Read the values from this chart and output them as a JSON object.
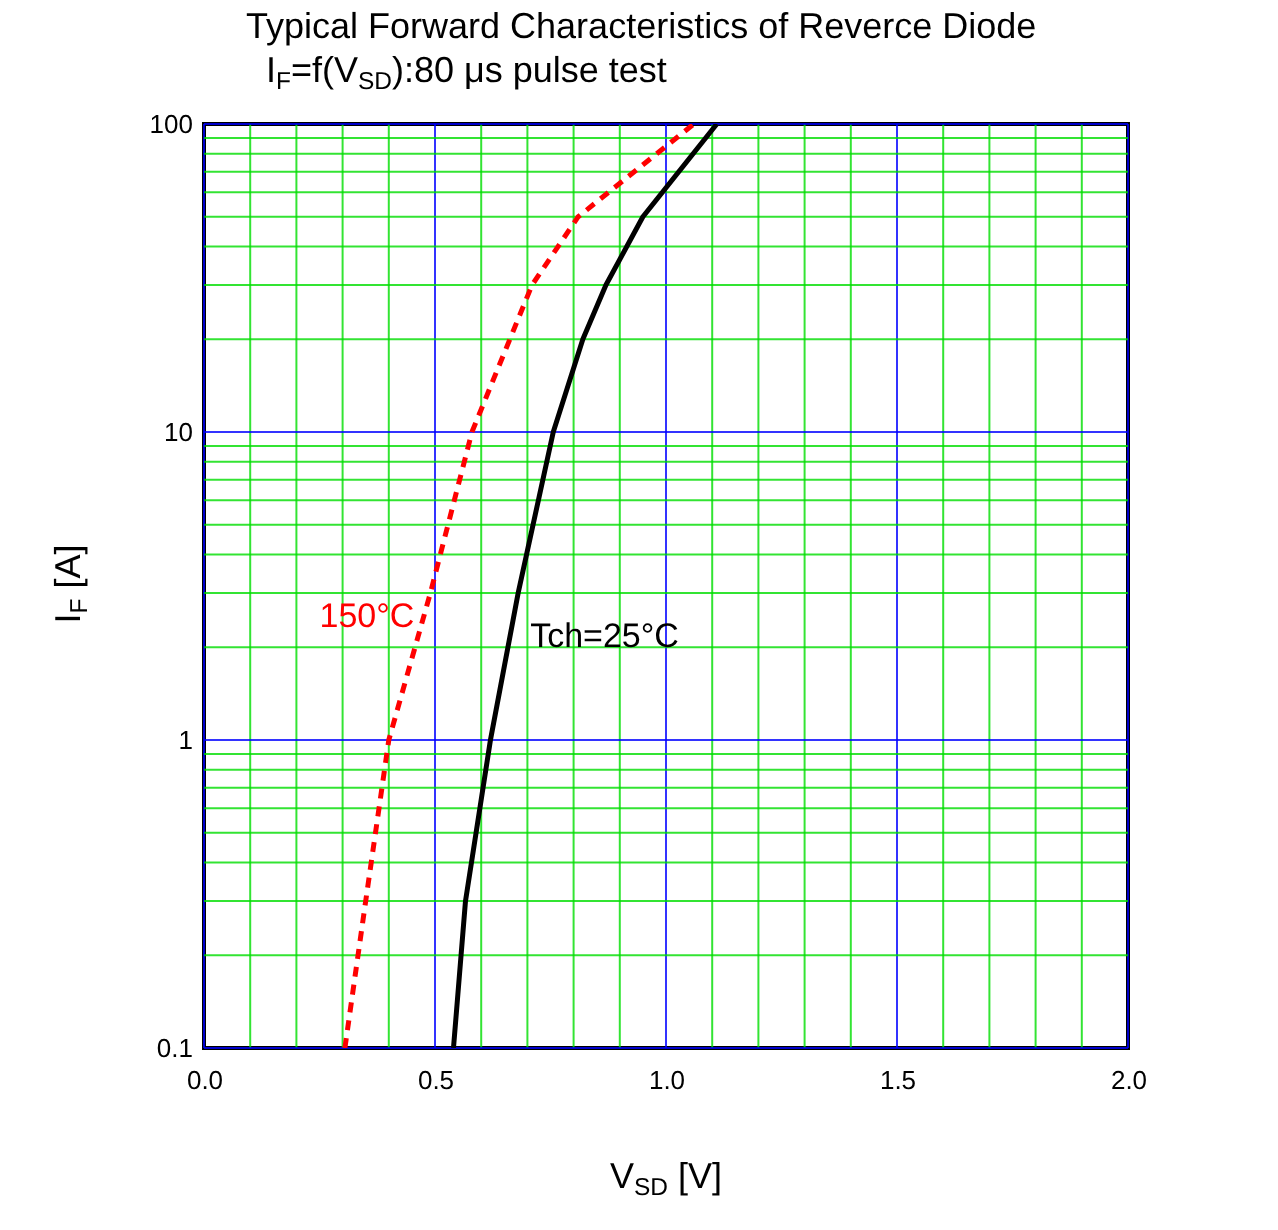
{
  "chart_data": {
    "type": "line",
    "title": "Typical Forward Characteristics of Reverce Diode",
    "subtitle": "I$_{F}$=f(V$_{SD}$):80 μs pulse test",
    "xlabel": "V$_{SD}$ [V]",
    "ylabel": "I$_{F}$ [A]",
    "xlim": [
      0,
      2
    ],
    "xticks": [
      {
        "value": 0,
        "label": "0.0"
      },
      {
        "value": 0.1,
        "label": null
      },
      {
        "value": 0.2,
        "label": null
      },
      {
        "value": 0.3,
        "label": null
      },
      {
        "value": 0.4,
        "label": null
      },
      {
        "value": 0.5,
        "label": "0.5"
      },
      {
        "value": 0.6,
        "label": null
      },
      {
        "value": 0.7,
        "label": null
      },
      {
        "value": 0.8,
        "label": null
      },
      {
        "value": 0.9,
        "label": null
      },
      {
        "value": 1,
        "label": "1.0"
      },
      {
        "value": 1.1,
        "label": null
      },
      {
        "value": 1.2,
        "label": null
      },
      {
        "value": 1.3,
        "label": null
      },
      {
        "value": 1.4,
        "label": null
      },
      {
        "value": 1.5,
        "label": "1.5"
      },
      {
        "value": 1.6,
        "label": null
      },
      {
        "value": 1.7,
        "label": null
      },
      {
        "value": 1.8,
        "label": null
      },
      {
        "value": 1.9,
        "label": null
      },
      {
        "value": 2,
        "label": "2.0"
      }
    ],
    "ylim": [
      0.1,
      100
    ],
    "yticks": [
      0.1,
      {
        "value": 0.2,
        "label": null
      },
      {
        "value": 0.3,
        "label": null
      },
      {
        "value": 0.4,
        "label": null
      },
      {
        "value": 0.5,
        "label": null
      },
      {
        "value": 0.6,
        "label": null
      },
      {
        "value": 0.7,
        "label": null
      },
      {
        "value": 0.8,
        "label": null
      },
      {
        "value": 0.9,
        "label": null
      },
      1,
      {
        "value": 2,
        "label": null
      },
      {
        "value": 3,
        "label": null
      },
      {
        "value": 4,
        "label": null
      },
      {
        "value": 5,
        "label": null
      },
      {
        "value": 6,
        "label": null
      },
      {
        "value": 7,
        "label": null
      },
      {
        "value": 8,
        "label": null
      },
      {
        "value": 9,
        "label": null
      },
      10,
      {
        "value": 20,
        "label": null
      },
      {
        "value": 30,
        "label": null
      },
      {
        "value": 40,
        "label": null
      },
      {
        "value": 50,
        "label": null
      },
      {
        "value": 60,
        "label": null
      },
      {
        "value": 70,
        "label": null
      },
      {
        "value": 80,
        "label": null
      },
      {
        "value": 90,
        "label": null
      },
      100
    ],
    "log": "y",
    "grid": true,
    "series": [
      {
        "name": "Tch=25°C",
        "color": "#000000",
        "line_style": "solid",
        "x": [
          0.54,
          0.566,
          0.62,
          0.68,
          0.756,
          0.82,
          0.87,
          0.95,
          1.11
        ],
        "values": [
          0.1,
          0.3,
          1,
          3,
          10,
          20,
          30,
          50,
          100
        ]
      },
      {
        "name": "150°C",
        "color": "#ff0000",
        "line_style": "dashed",
        "x": [
          0.305,
          0.35,
          0.4,
          0.49,
          0.58,
          0.71,
          0.81,
          1.06
        ],
        "values": [
          0.1,
          0.3,
          1,
          3,
          10,
          30,
          50,
          100
        ]
      }
    ]
  }
}
